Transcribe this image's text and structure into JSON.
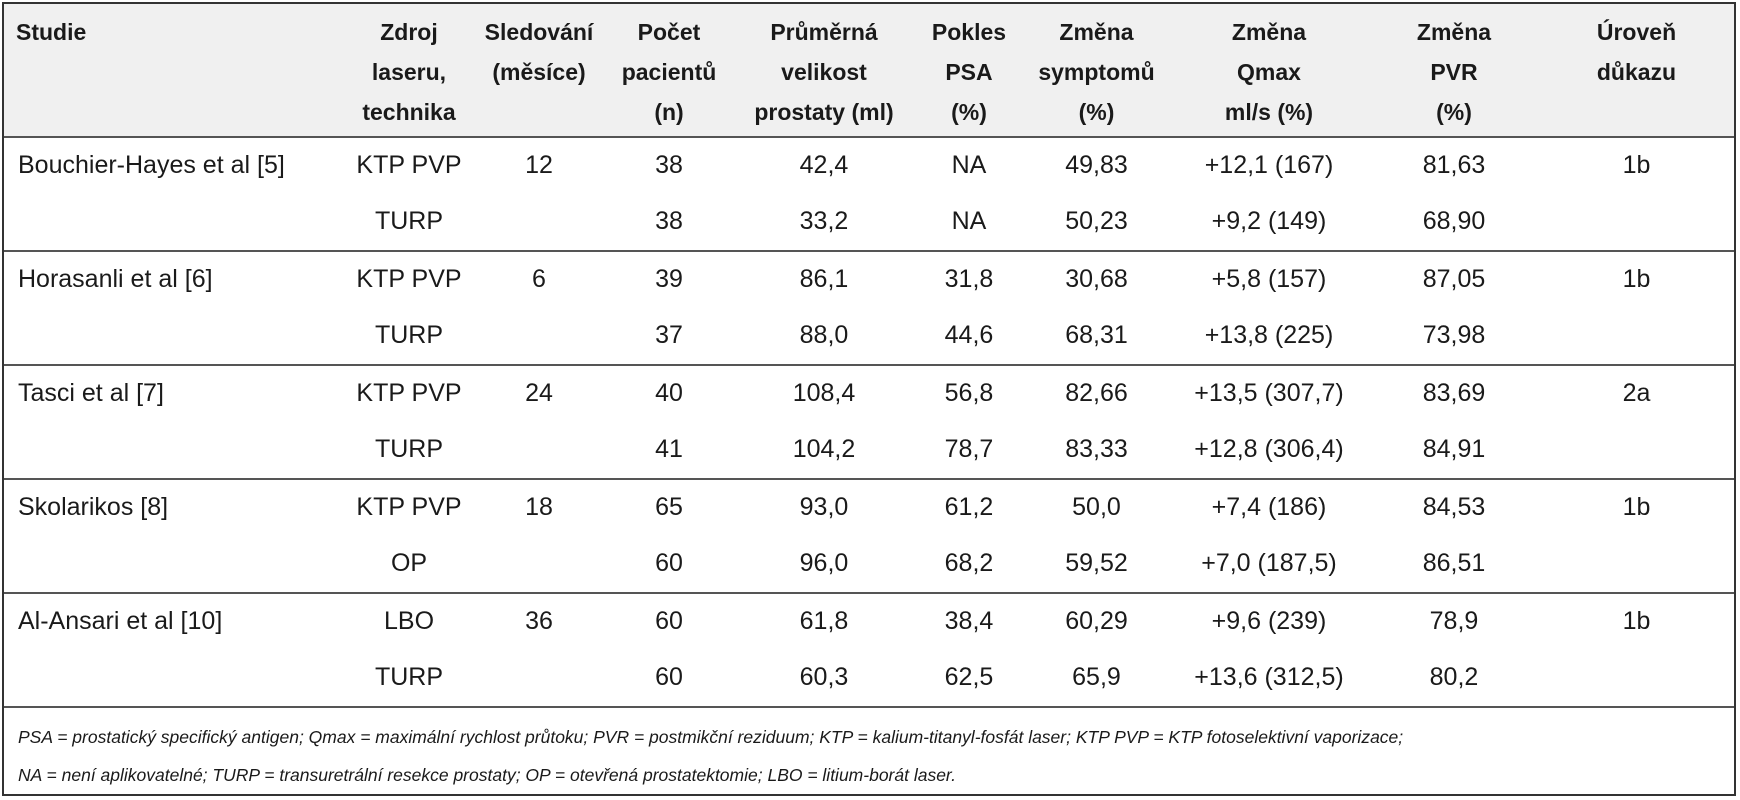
{
  "headers": [
    [
      "Studie"
    ],
    [
      "Zdroj",
      "laseru,",
      "technika"
    ],
    [
      "Sledování",
      "(měsíce)"
    ],
    [
      "Počet",
      "pacientů",
      "(n)"
    ],
    [
      "Průměrná",
      "velikost",
      "prostaty (ml)"
    ],
    [
      "Pokles",
      "PSA",
      "(%)"
    ],
    [
      "Změna",
      "symptomů",
      "(%)"
    ],
    [
      "Změna",
      "Qmax",
      "ml/s (%)"
    ],
    [
      "Změna",
      "PVR",
      "(%)"
    ],
    [
      "Úroveň",
      "důkazu"
    ]
  ],
  "groups": [
    {
      "study": "Bouchier-Hayes et al [5]",
      "followup": "12",
      "evidence": "1b",
      "rows": [
        {
          "technique": "KTP PVP",
          "n": "38",
          "size": "42,4",
          "psa": "NA",
          "symptoms": "49,83",
          "qmax": "+12,1 (167)",
          "pvr": "81,63"
        },
        {
          "technique": "TURP",
          "n": "38",
          "size": "33,2",
          "psa": "NA",
          "symptoms": "50,23",
          "qmax": "+9,2 (149)",
          "pvr": "68,90"
        }
      ]
    },
    {
      "study": "Horasanli et al [6]",
      "followup": "6",
      "evidence": "1b",
      "rows": [
        {
          "technique": "KTP PVP",
          "n": "39",
          "size": "86,1",
          "psa": "31,8",
          "symptoms": "30,68",
          "qmax": "+5,8 (157)",
          "pvr": "87,05"
        },
        {
          "technique": "TURP",
          "n": "37",
          "size": "88,0",
          "psa": "44,6",
          "symptoms": "68,31",
          "qmax": "+13,8 (225)",
          "pvr": "73,98"
        }
      ]
    },
    {
      "study": "Tasci et al [7]",
      "followup": "24",
      "evidence": "2a",
      "rows": [
        {
          "technique": "KTP PVP",
          "n": "40",
          "size": "108,4",
          "psa": "56,8",
          "symptoms": "82,66",
          "qmax": "+13,5 (307,7)",
          "pvr": "83,69"
        },
        {
          "technique": "TURP",
          "n": "41",
          "size": "104,2",
          "psa": "78,7",
          "symptoms": "83,33",
          "qmax": "+12,8 (306,4)",
          "pvr": "84,91"
        }
      ]
    },
    {
      "study": "Skolarikos [8]",
      "followup": "18",
      "evidence": "1b",
      "rows": [
        {
          "technique": "KTP PVP",
          "n": "65",
          "size": "93,0",
          "psa": "61,2",
          "symptoms": "50,0",
          "qmax": "+7,4 (186)",
          "pvr": "84,53"
        },
        {
          "technique": "OP",
          "n": "60",
          "size": "96,0",
          "psa": "68,2",
          "symptoms": "59,52",
          "qmax": "+7,0 (187,5)",
          "pvr": "86,51"
        }
      ]
    },
    {
      "study": "Al-Ansari et al [10]",
      "followup": "36",
      "evidence": "1b",
      "rows": [
        {
          "technique": "LBO",
          "n": "60",
          "size": "61,8",
          "psa": "38,4",
          "symptoms": "60,29",
          "qmax": "+9,6 (239)",
          "pvr": "78,9"
        },
        {
          "technique": "TURP",
          "n": "60",
          "size": "60,3",
          "psa": "62,5",
          "symptoms": "65,9",
          "qmax": "+13,6 (312,5)",
          "pvr": "80,2"
        }
      ]
    }
  ],
  "notes": [
    "PSA = prostatický specifický antigen; Qmax = maximální rychlost průtoku; PVR = postmikční reziduum; KTP = kalium-titanyl-fosfát laser; KTP PVP = KTP fotoselektivní vaporizace;",
    "NA = není aplikovatelné; TURP = transuretrální resekce prostaty; OP = otevřená prostatektomie; LBO = litium-borát laser."
  ]
}
